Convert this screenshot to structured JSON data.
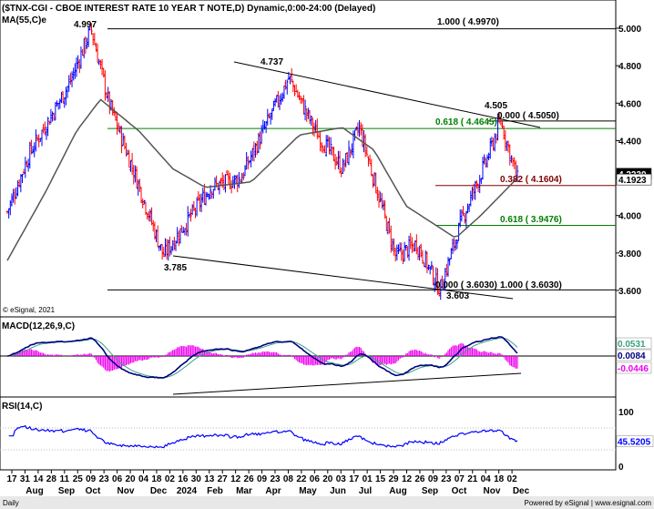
{
  "header": {
    "title": "($TNX-CGI - CBOE INTEREST RATE 10 YEAR T NOTE,D) Dynamic,0:00-24:00 (Delayed)",
    "indicator": "MA(55,C)e",
    "copyright": "© eSignal, 2021"
  },
  "colors": {
    "background": "#ffffff",
    "bull_bar": "#0000ff",
    "bear_bar": "#ff0000",
    "ma_line": "#555555",
    "macd_line": "#000080",
    "signal_line": "#39a080",
    "histogram": "#ee00ee",
    "rsi_line": "#0000ff",
    "fib_green": "#008000",
    "fib_red": "#800000",
    "trendline": "#000000"
  },
  "main_panel": {
    "y_ticks": [
      "5.000",
      "4.800",
      "4.600",
      "4.400",
      "4.200",
      "4.000",
      "3.800",
      "3.600"
    ],
    "price_labels": [
      {
        "text": "4.2230",
        "bg": "#000000",
        "fg": "#ffffff",
        "value": 4.223
      },
      {
        "text": "4.1923",
        "bg": "#ffffff",
        "fg": "#000000",
        "value": 4.1923
      }
    ],
    "annotations": {
      "high_2023": "4.997",
      "low_dec": "3.785",
      "high_apr": "4.737",
      "low_sep": "3.603",
      "high_nov": "4.505"
    },
    "fib_labels": {
      "f1000_top": "1.000 ( 4.9970)",
      "f0000_top": "0.000 ( 4.5050)",
      "f0618_top": "0.618 ( 4.4645)",
      "f0382": "0.382 ( 4.1604)",
      "f0618_mid": "0.618 ( 3.9476)",
      "f0000_low": "0.000 ( 3.6030)",
      "f1000_low": "1.000 ( 3.6030)"
    }
  },
  "macd_panel": {
    "title": "MACD(12,26,9,C)",
    "values": [
      {
        "text": "0.0531",
        "color": "#39a080"
      },
      {
        "text": "0.0084",
        "color": "#000080"
      },
      {
        "text": "-0.0446",
        "color": "#ee00ee"
      }
    ]
  },
  "rsi_panel": {
    "title": "RSI(14,C)",
    "y_ticks": [
      "100",
      "50",
      "0"
    ],
    "value": {
      "text": "45.5205",
      "color": "#0000ff"
    }
  },
  "x_axis": {
    "day_ticks": [
      "17",
      "31",
      "14",
      "28",
      "11",
      "25",
      "09",
      "23",
      "06",
      "20",
      "04",
      "18",
      "02",
      "16",
      "30",
      "13",
      "27",
      "12",
      "26",
      "09",
      "23",
      "08",
      "22",
      "06",
      "20",
      "03",
      "17",
      "01",
      "15",
      "29",
      "12",
      "26",
      "09",
      "23",
      "07",
      "21",
      "04",
      "18",
      "02"
    ],
    "month_labels": [
      "Aug",
      "Sep",
      "Oct",
      "Nov",
      "Dec",
      "2024",
      "Feb",
      "Mar",
      "Apr",
      "May",
      "Jun",
      "Jul",
      "Aug",
      "Sep",
      "Oct",
      "Nov",
      "Dec"
    ]
  },
  "footer": {
    "left": "Daily",
    "right": "Powered by eSignal | www.esignal.com"
  },
  "chart_data": [
    {
      "type": "candlestick",
      "title": "($TNX-CGI - CBOE INTEREST RATE 10 YEAR T NOTE,D) Dynamic,0:00-24:00 (Delayed)",
      "ylim": [
        3.52,
        5.1
      ],
      "key_points": [
        {
          "x": "2023-07-31",
          "y": 4.02
        },
        {
          "x": "2023-08-21",
          "y": 4.33
        },
        {
          "x": "2023-09-28",
          "y": 4.7
        },
        {
          "x": "2023-10-19",
          "y": 4.997
        },
        {
          "x": "2023-11-05",
          "y": 4.6
        },
        {
          "x": "2023-12-01",
          "y": 4.2
        },
        {
          "x": "2023-12-27",
          "y": 3.785
        },
        {
          "x": "2024-02-10",
          "y": 4.15
        },
        {
          "x": "2024-03-10",
          "y": 4.2
        },
        {
          "x": "2024-04-25",
          "y": 4.737
        },
        {
          "x": "2024-05-20",
          "y": 4.45
        },
        {
          "x": "2024-06-15",
          "y": 4.25
        },
        {
          "x": "2024-07-01",
          "y": 4.47
        },
        {
          "x": "2024-08-05",
          "y": 3.78
        },
        {
          "x": "2024-08-25",
          "y": 3.85
        },
        {
          "x": "2024-09-16",
          "y": 3.603
        },
        {
          "x": "2024-10-07",
          "y": 3.98
        },
        {
          "x": "2024-10-31",
          "y": 4.3
        },
        {
          "x": "2024-11-13",
          "y": 4.505
        },
        {
          "x": "2024-11-29",
          "y": 4.1923
        }
      ],
      "ma55": [
        {
          "x": "2023-07-31",
          "y": 3.76
        },
        {
          "x": "2023-09-05",
          "y": 4.12
        },
        {
          "x": "2023-10-05",
          "y": 4.45
        },
        {
          "x": "2023-10-28",
          "y": 4.62
        },
        {
          "x": "2023-12-04",
          "y": 4.45
        },
        {
          "x": "2024-01-05",
          "y": 4.25
        },
        {
          "x": "2024-02-05",
          "y": 4.15
        },
        {
          "x": "2024-03-20",
          "y": 4.18
        },
        {
          "x": "2024-05-05",
          "y": 4.43
        },
        {
          "x": "2024-06-15",
          "y": 4.47
        },
        {
          "x": "2024-07-15",
          "y": 4.35
        },
        {
          "x": "2024-08-15",
          "y": 4.05
        },
        {
          "x": "2024-10-01",
          "y": 3.88
        },
        {
          "x": "2024-10-25",
          "y": 4.0
        },
        {
          "x": "2024-11-29",
          "y": 4.2
        }
      ],
      "fibonacci": [
        {
          "ratio": 1.0,
          "value": 4.997
        },
        {
          "ratio": 0.0,
          "value": 4.505
        },
        {
          "ratio": 0.618,
          "value": 4.4645
        },
        {
          "ratio": 0.382,
          "value": 4.1604
        },
        {
          "ratio": 0.618,
          "value": 3.9476
        },
        {
          "ratio": 0.0,
          "value": 3.603
        },
        {
          "ratio": 1.0,
          "value": 3.603
        }
      ],
      "trendlines": [
        {
          "from": {
            "x": "2024-02-17",
            "y": 4.9
          },
          "to": {
            "x": "2024-11-29",
            "y": 4.45
          }
        },
        {
          "from": {
            "x": "2023-12-27",
            "y": 3.785
          },
          "to": {
            "x": "2024-11-29",
            "y": 3.57
          }
        }
      ]
    },
    {
      "type": "line",
      "title": "MACD(12,26,9,C)",
      "series": [
        {
          "name": "MACD",
          "last": 0.0084
        },
        {
          "name": "Signal",
          "last": 0.0531
        },
        {
          "name": "Histogram",
          "last": -0.0446
        }
      ]
    },
    {
      "type": "line",
      "title": "RSI(14,C)",
      "ylim": [
        0,
        100
      ],
      "series": [
        {
          "name": "RSI",
          "last": 45.5205
        }
      ],
      "levels": [
        70,
        30
      ]
    }
  ]
}
